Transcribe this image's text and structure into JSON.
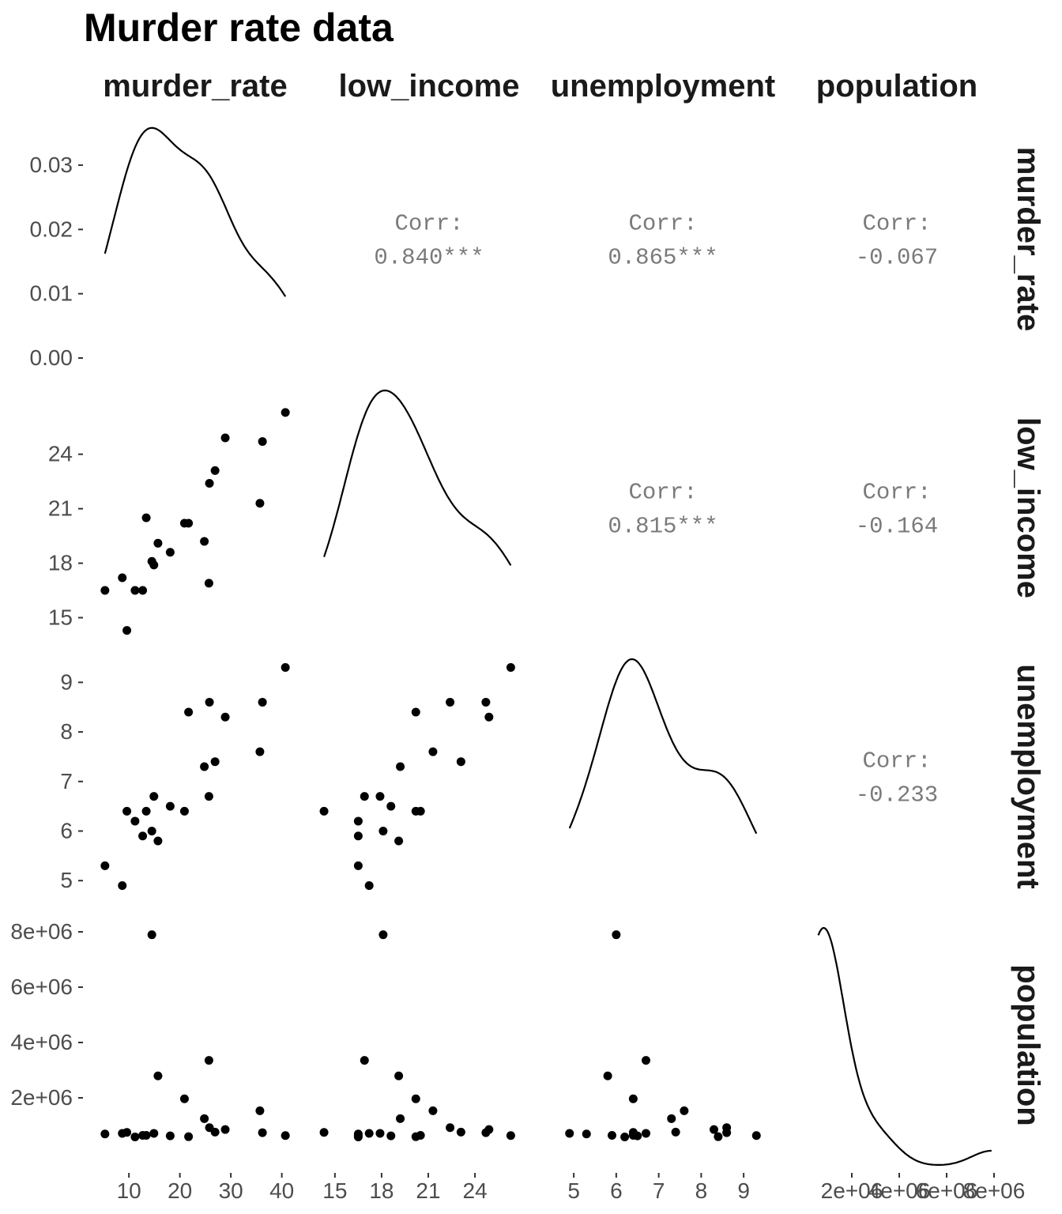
{
  "chart_data": {
    "type": "scatter",
    "title": "Murder rate data",
    "variables": [
      "murder_rate",
      "low_income",
      "unemployment",
      "population"
    ],
    "diagonal": "density",
    "grid": false,
    "axes": {
      "murder_rate": {
        "lim": [
          3,
          43
        ],
        "ticks": [
          10,
          20,
          30,
          40
        ],
        "tick_labels": [
          "10",
          "20",
          "30",
          "40"
        ]
      },
      "low_income": {
        "lim": [
          14.5,
          27.6
        ],
        "ticks": [
          15,
          18,
          21,
          24
        ],
        "tick_labels": [
          "15",
          "18",
          "21",
          "24"
        ]
      },
      "unemployment": {
        "lim": [
          4.7,
          9.5
        ],
        "ticks": [
          5,
          6,
          7,
          8,
          9
        ],
        "tick_labels": [
          "5",
          "6",
          "7",
          "8",
          "9"
        ]
      },
      "population": {
        "lim": [
          -400000,
          8200000
        ],
        "ticks": [
          2000000,
          4000000,
          6000000,
          8000000
        ],
        "tick_labels": [
          "2e+06",
          "4e+06",
          "6e+06",
          "8e+06"
        ]
      }
    },
    "density_axis": {
      "lim": [
        0,
        0.037
      ],
      "ticks": [
        0,
        0.01,
        0.02,
        0.03
      ],
      "tick_labels": [
        "0.00",
        "0.01",
        "0.02",
        "0.03"
      ]
    },
    "correlations": [
      {
        "row": "murder_rate",
        "col": "low_income",
        "label": "Corr:",
        "value": "0.840***"
      },
      {
        "row": "murder_rate",
        "col": "unemployment",
        "label": "Corr:",
        "value": "0.865***"
      },
      {
        "row": "murder_rate",
        "col": "population",
        "label": "Corr:",
        "value": "-0.067"
      },
      {
        "row": "low_income",
        "col": "unemployment",
        "label": "Corr:",
        "value": "0.815***"
      },
      {
        "row": "low_income",
        "col": "population",
        "label": "Corr:",
        "value": "-0.164"
      },
      {
        "row": "unemployment",
        "col": "population",
        "label": "Corr:",
        "value": "-0.233"
      }
    ],
    "points": [
      {
        "murder_rate": 11.2,
        "low_income": 16.5,
        "unemployment": 6.2,
        "population": 587000
      },
      {
        "murder_rate": 13.4,
        "low_income": 20.5,
        "unemployment": 6.4,
        "population": 643000
      },
      {
        "murder_rate": 40.7,
        "low_income": 26.3,
        "unemployment": 9.3,
        "population": 635000
      },
      {
        "murder_rate": 5.3,
        "low_income": 16.5,
        "unemployment": 5.3,
        "population": 692000
      },
      {
        "murder_rate": 24.8,
        "low_income": 19.2,
        "unemployment": 7.3,
        "population": 1248000
      },
      {
        "murder_rate": 12.7,
        "low_income": 16.5,
        "unemployment": 5.9,
        "population": 643000
      },
      {
        "murder_rate": 20.9,
        "low_income": 20.2,
        "unemployment": 6.4,
        "population": 1964000
      },
      {
        "murder_rate": 35.7,
        "low_income": 21.3,
        "unemployment": 7.6,
        "population": 1531000
      },
      {
        "murder_rate": 8.7,
        "low_income": 17.2,
        "unemployment": 4.9,
        "population": 713000
      },
      {
        "murder_rate": 9.6,
        "low_income": 14.3,
        "unemployment": 6.4,
        "population": 749000
      },
      {
        "murder_rate": 14.5,
        "low_income": 18.1,
        "unemployment": 6.0,
        "population": 7895000
      },
      {
        "murder_rate": 26.9,
        "low_income": 23.1,
        "unemployment": 7.4,
        "population": 762000
      },
      {
        "murder_rate": 15.7,
        "low_income": 19.1,
        "unemployment": 5.8,
        "population": 2793000
      },
      {
        "murder_rate": 36.2,
        "low_income": 24.7,
        "unemployment": 8.6,
        "population": 741000
      },
      {
        "murder_rate": 18.1,
        "low_income": 18.6,
        "unemployment": 6.5,
        "population": 625000
      },
      {
        "murder_rate": 28.9,
        "low_income": 24.9,
        "unemployment": 8.3,
        "population": 854000
      },
      {
        "murder_rate": 14.9,
        "low_income": 17.9,
        "unemployment": 6.7,
        "population": 716000
      },
      {
        "murder_rate": 25.8,
        "low_income": 22.4,
        "unemployment": 8.6,
        "population": 921000
      },
      {
        "murder_rate": 21.7,
        "low_income": 20.2,
        "unemployment": 8.4,
        "population": 595000
      },
      {
        "murder_rate": 25.7,
        "low_income": 16.9,
        "unemployment": 6.7,
        "population": 3353000
      }
    ]
  }
}
